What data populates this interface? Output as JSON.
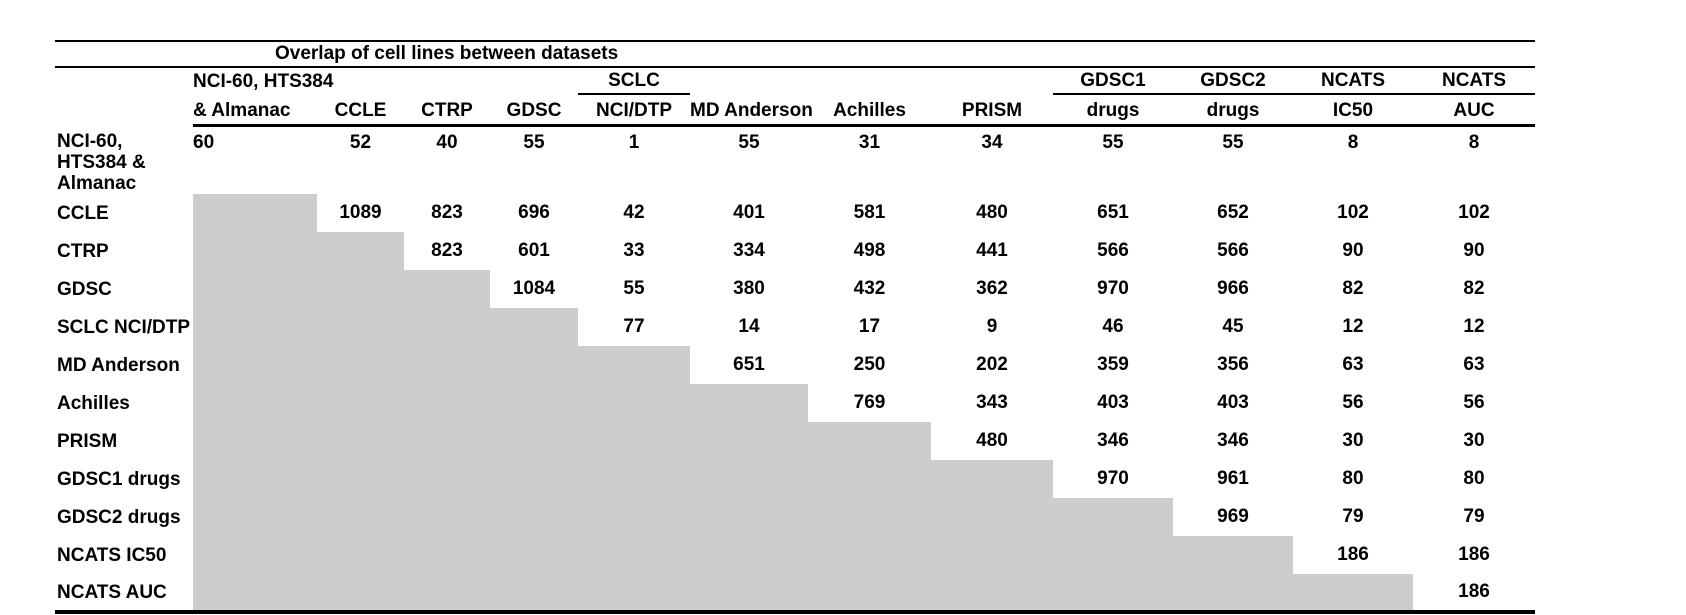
{
  "chart_data": {
    "type": "table",
    "title": "Overlap of cell lines between datasets",
    "header_row1": [
      "",
      "NCI-60, HTS384",
      "",
      "",
      "",
      "SCLC",
      "",
      "",
      "",
      "GDSC1",
      "GDSC2",
      "NCATS",
      "NCATS"
    ],
    "header_row1_underlined": [
      5,
      9,
      10,
      11,
      12
    ],
    "header_row2": [
      "",
      "& Almanac",
      "CCLE",
      "CTRP",
      "GDSC",
      "NCI/DTP",
      "MD Anderson",
      "Achilles",
      "PRISM",
      "drugs",
      "drugs",
      "IC50",
      "AUC"
    ],
    "columns": [
      "NCI-60, HTS384 & Almanac",
      "CCLE",
      "CTRP",
      "GDSC",
      "SCLC NCI/DTP",
      "MD Anderson",
      "Achilles",
      "PRISM",
      "GDSC1 drugs",
      "GDSC2 drugs",
      "NCATS IC50",
      "NCATS AUC"
    ],
    "rows": [
      {
        "label": "NCI-60, HTS384 & Almanac",
        "values": [
          60,
          52,
          40,
          55,
          1,
          55,
          31,
          34,
          55,
          55,
          8,
          8
        ]
      },
      {
        "label": "CCLE",
        "values": [
          null,
          1089,
          823,
          696,
          42,
          401,
          581,
          480,
          651,
          652,
          102,
          102
        ]
      },
      {
        "label": "CTRP",
        "values": [
          null,
          null,
          823,
          601,
          33,
          334,
          498,
          441,
          566,
          566,
          90,
          90
        ]
      },
      {
        "label": "GDSC",
        "values": [
          null,
          null,
          null,
          1084,
          55,
          380,
          432,
          362,
          970,
          966,
          82,
          82
        ]
      },
      {
        "label": "SCLC NCI/DTP",
        "values": [
          null,
          null,
          null,
          null,
          77,
          14,
          17,
          9,
          46,
          45,
          12,
          12
        ]
      },
      {
        "label": "MD Anderson",
        "values": [
          null,
          null,
          null,
          null,
          null,
          651,
          250,
          202,
          359,
          356,
          63,
          63
        ]
      },
      {
        "label": "Achilles",
        "values": [
          null,
          null,
          null,
          null,
          null,
          null,
          769,
          343,
          403,
          403,
          56,
          56
        ]
      },
      {
        "label": "PRISM",
        "values": [
          null,
          null,
          null,
          null,
          null,
          null,
          null,
          480,
          346,
          346,
          30,
          30
        ]
      },
      {
        "label": "GDSC1 drugs",
        "values": [
          null,
          null,
          null,
          null,
          null,
          null,
          null,
          null,
          970,
          961,
          80,
          80
        ]
      },
      {
        "label": "GDSC2 drugs",
        "values": [
          null,
          null,
          null,
          null,
          null,
          null,
          null,
          null,
          null,
          969,
          79,
          79
        ]
      },
      {
        "label": "NCATS IC50",
        "values": [
          null,
          null,
          null,
          null,
          null,
          null,
          null,
          null,
          null,
          null,
          186,
          186
        ]
      },
      {
        "label": "NCATS AUC",
        "values": [
          null,
          null,
          null,
          null,
          null,
          null,
          null,
          null,
          null,
          null,
          null,
          186
        ]
      }
    ],
    "colors": {
      "shaded_cell": "#cdcdcd",
      "text": "#000000",
      "rule": "#000000"
    },
    "layout_hints": {
      "shading": "lower-triangle cells shaded gray",
      "value_alignment": "center except first data column left-aligned"
    }
  }
}
